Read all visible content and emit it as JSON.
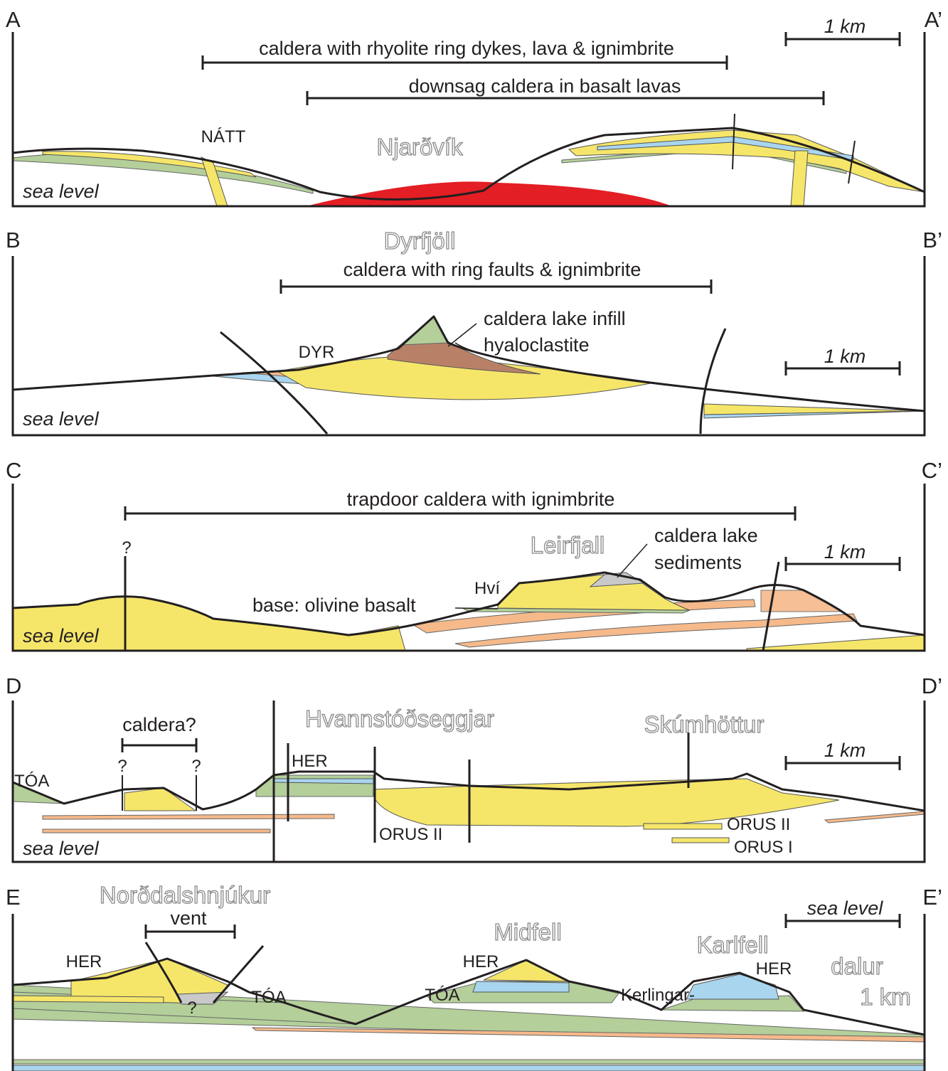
{
  "panels": [
    {
      "label_left": "A",
      "label_right": "A’",
      "texts": [
        "1 km",
        "caldera with rhyolite ring dykes, lava & ignimbrite",
        "downsag caldera in basalt lavas",
        "NÁTT",
        "Njarðvík",
        "sea level"
      ]
    },
    {
      "label_left": "B",
      "label_right": "B’",
      "texts": [
        "Dyrfjöll",
        "caldera with ring faults & ignimbrite",
        "caldera lake infill",
        "hyaloclastite",
        "DYR",
        "1 km",
        "sea level"
      ]
    },
    {
      "label_left": "C",
      "label_right": "C’",
      "texts": [
        "trapdoor caldera with ignimbrite",
        "?",
        "Leirfjall",
        "caldera lake",
        "sediments",
        "Hví",
        "1 km",
        "base: olivine basalt",
        "sea level"
      ]
    },
    {
      "label_left": "D",
      "label_right": "D’",
      "texts": [
        "caldera?",
        "?",
        "?",
        "Hvannstóðseggjar",
        "Skúmhöttur",
        "HER",
        "TÓA",
        "1 km",
        "ORUS II",
        "ORUS II",
        "ORUS I",
        "sea level"
      ]
    },
    {
      "label_left": "E",
      "label_right": "E’",
      "texts": [
        "Norðdalshnjúkur",
        "vent",
        "HER",
        "TÓA",
        "?",
        "Midfell",
        "HER",
        "TÓA",
        "Karlfell",
        "HER",
        "Kerlingar-",
        "dalur",
        "1 km",
        "sea level"
      ]
    }
  ]
}
